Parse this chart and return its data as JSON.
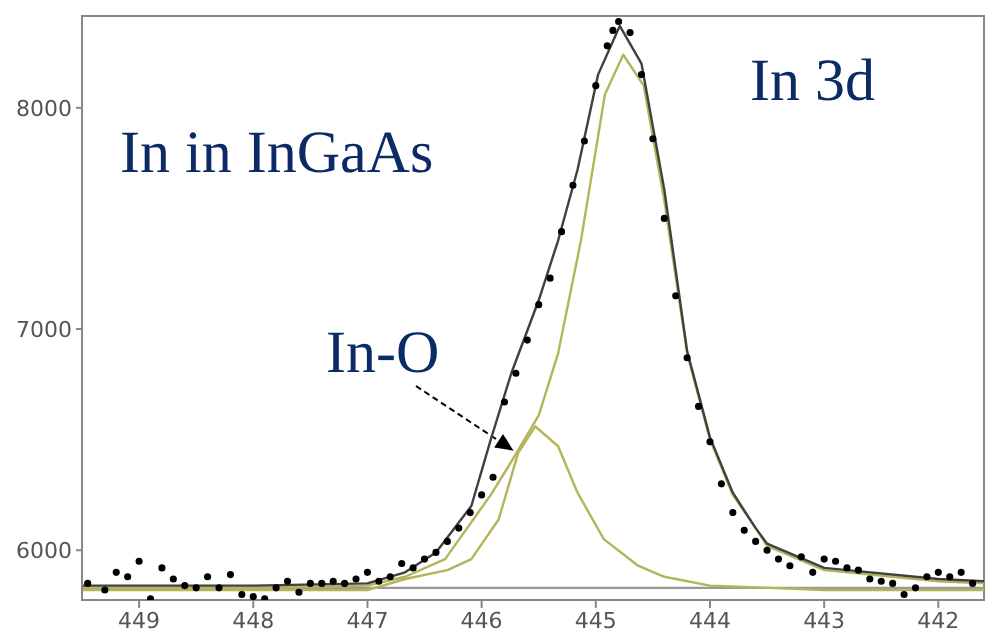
{
  "chart_data": {
    "type": "line",
    "title": "In in InGaAs",
    "annotations": [
      "In 3d",
      {
        "text": "In-O",
        "x": 445.72,
        "y": 6450
      }
    ],
    "xlim": [
      449.5,
      441.6
    ],
    "xticks": [
      449,
      448,
      447,
      446,
      445,
      444,
      443,
      442
    ],
    "ylim": [
      5775,
      8415
    ],
    "yticks": [
      6000,
      7000,
      8000
    ],
    "grid": false,
    "legend": false,
    "line_style": "solid",
    "series": [
      {
        "color": "#999999",
        "x": [
          449.5,
          441.6
        ],
        "values": [
          5830,
          5830
        ]
      },
      {
        "color": "#b4b45a",
        "x": [
          449.5,
          447,
          446.67,
          446.3,
          446.09,
          445.85,
          445.68,
          445.53,
          445.33,
          445.16,
          444.93,
          444.63,
          444.4,
          444,
          443,
          441.6
        ],
        "values": [
          5820,
          5820,
          5870,
          5910,
          5960,
          6140,
          6440,
          6560,
          6470,
          6260,
          6050,
          5930,
          5880,
          5840,
          5820,
          5820
        ]
      },
      {
        "color": "#b4b45a",
        "x": [
          449.5,
          448,
          447,
          446.67,
          446.32,
          445.92,
          445.74,
          445.5,
          445.33,
          445.13,
          444.92,
          444.76,
          444.58,
          444.4,
          444.2,
          444,
          443.8,
          443.6,
          443.5,
          443,
          442,
          441.6
        ],
        "values": [
          5830,
          5830,
          5840,
          5880,
          5960,
          6250,
          6400,
          6610,
          6890,
          7400,
          8060,
          8240,
          8100,
          7580,
          6890,
          6500,
          6250,
          6100,
          6020,
          5910,
          5860,
          5850
        ]
      },
      {
        "color": "#404040",
        "x": [
          449.5,
          448,
          447,
          446.67,
          446.4,
          446.09,
          445.92,
          445.74,
          445.5,
          445.33,
          445.16,
          444.98,
          444.79,
          444.6,
          444.4,
          444.2,
          444,
          443.8,
          443.6,
          443.5,
          443,
          442,
          441.6
        ],
        "values": [
          5840,
          5840,
          5850,
          5900,
          5990,
          6200,
          6500,
          6800,
          7130,
          7400,
          7720,
          8150,
          8370,
          8200,
          7630,
          6900,
          6510,
          6260,
          6100,
          6030,
          5920,
          5870,
          5860
        ]
      },
      {
        "type": "scatter",
        "marker": "circle",
        "color": "#000000",
        "x": [
          449.45,
          449.3,
          449.2,
          449.1,
          449,
          448.9,
          448.8,
          448.7,
          448.6,
          448.5,
          448.4,
          448.3,
          448.2,
          448.1,
          448,
          447.9,
          447.8,
          447.7,
          447.6,
          447.5,
          447.4,
          447.3,
          447.2,
          447.1,
          447,
          446.9,
          446.8,
          446.7,
          446.6,
          446.5,
          446.4,
          446.3,
          446.2,
          446.1,
          446,
          445.9,
          445.8,
          445.7,
          445.6,
          445.5,
          445.4,
          445.3,
          445.2,
          445.1,
          445,
          444.9,
          444.85,
          444.8,
          444.7,
          444.6,
          444.5,
          444.4,
          444.3,
          444.2,
          444.1,
          444,
          443.9,
          443.8,
          443.7,
          443.6,
          443.5,
          443.4,
          443.3,
          443.2,
          443.1,
          443,
          442.9,
          442.8,
          442.7,
          442.6,
          442.5,
          442.4,
          442.3,
          442.2,
          442.1,
          442,
          441.9,
          441.8,
          441.7
        ],
        "values": [
          5850,
          5820,
          5900,
          5880,
          5950,
          5780,
          5920,
          5870,
          5840,
          5830,
          5880,
          5830,
          5890,
          5800,
          5790,
          5780,
          5830,
          5860,
          5810,
          5850,
          5850,
          5860,
          5850,
          5870,
          5900,
          5860,
          5880,
          5940,
          5920,
          5960,
          5990,
          6040,
          6100,
          6170,
          6250,
          6330,
          6670,
          6800,
          6950,
          7110,
          7230,
          7440,
          7650,
          7850,
          8100,
          8280,
          8350,
          8390,
          8340,
          8150,
          7860,
          7500,
          7150,
          6870,
          6650,
          6490,
          6300,
          6170,
          6090,
          6040,
          6000,
          5960,
          5930,
          5970,
          5900,
          5960,
          5950,
          5920,
          5910,
          5870,
          5860,
          5850,
          5800,
          5830,
          5880,
          5900,
          5880,
          5900,
          5850
        ]
      }
    ]
  }
}
